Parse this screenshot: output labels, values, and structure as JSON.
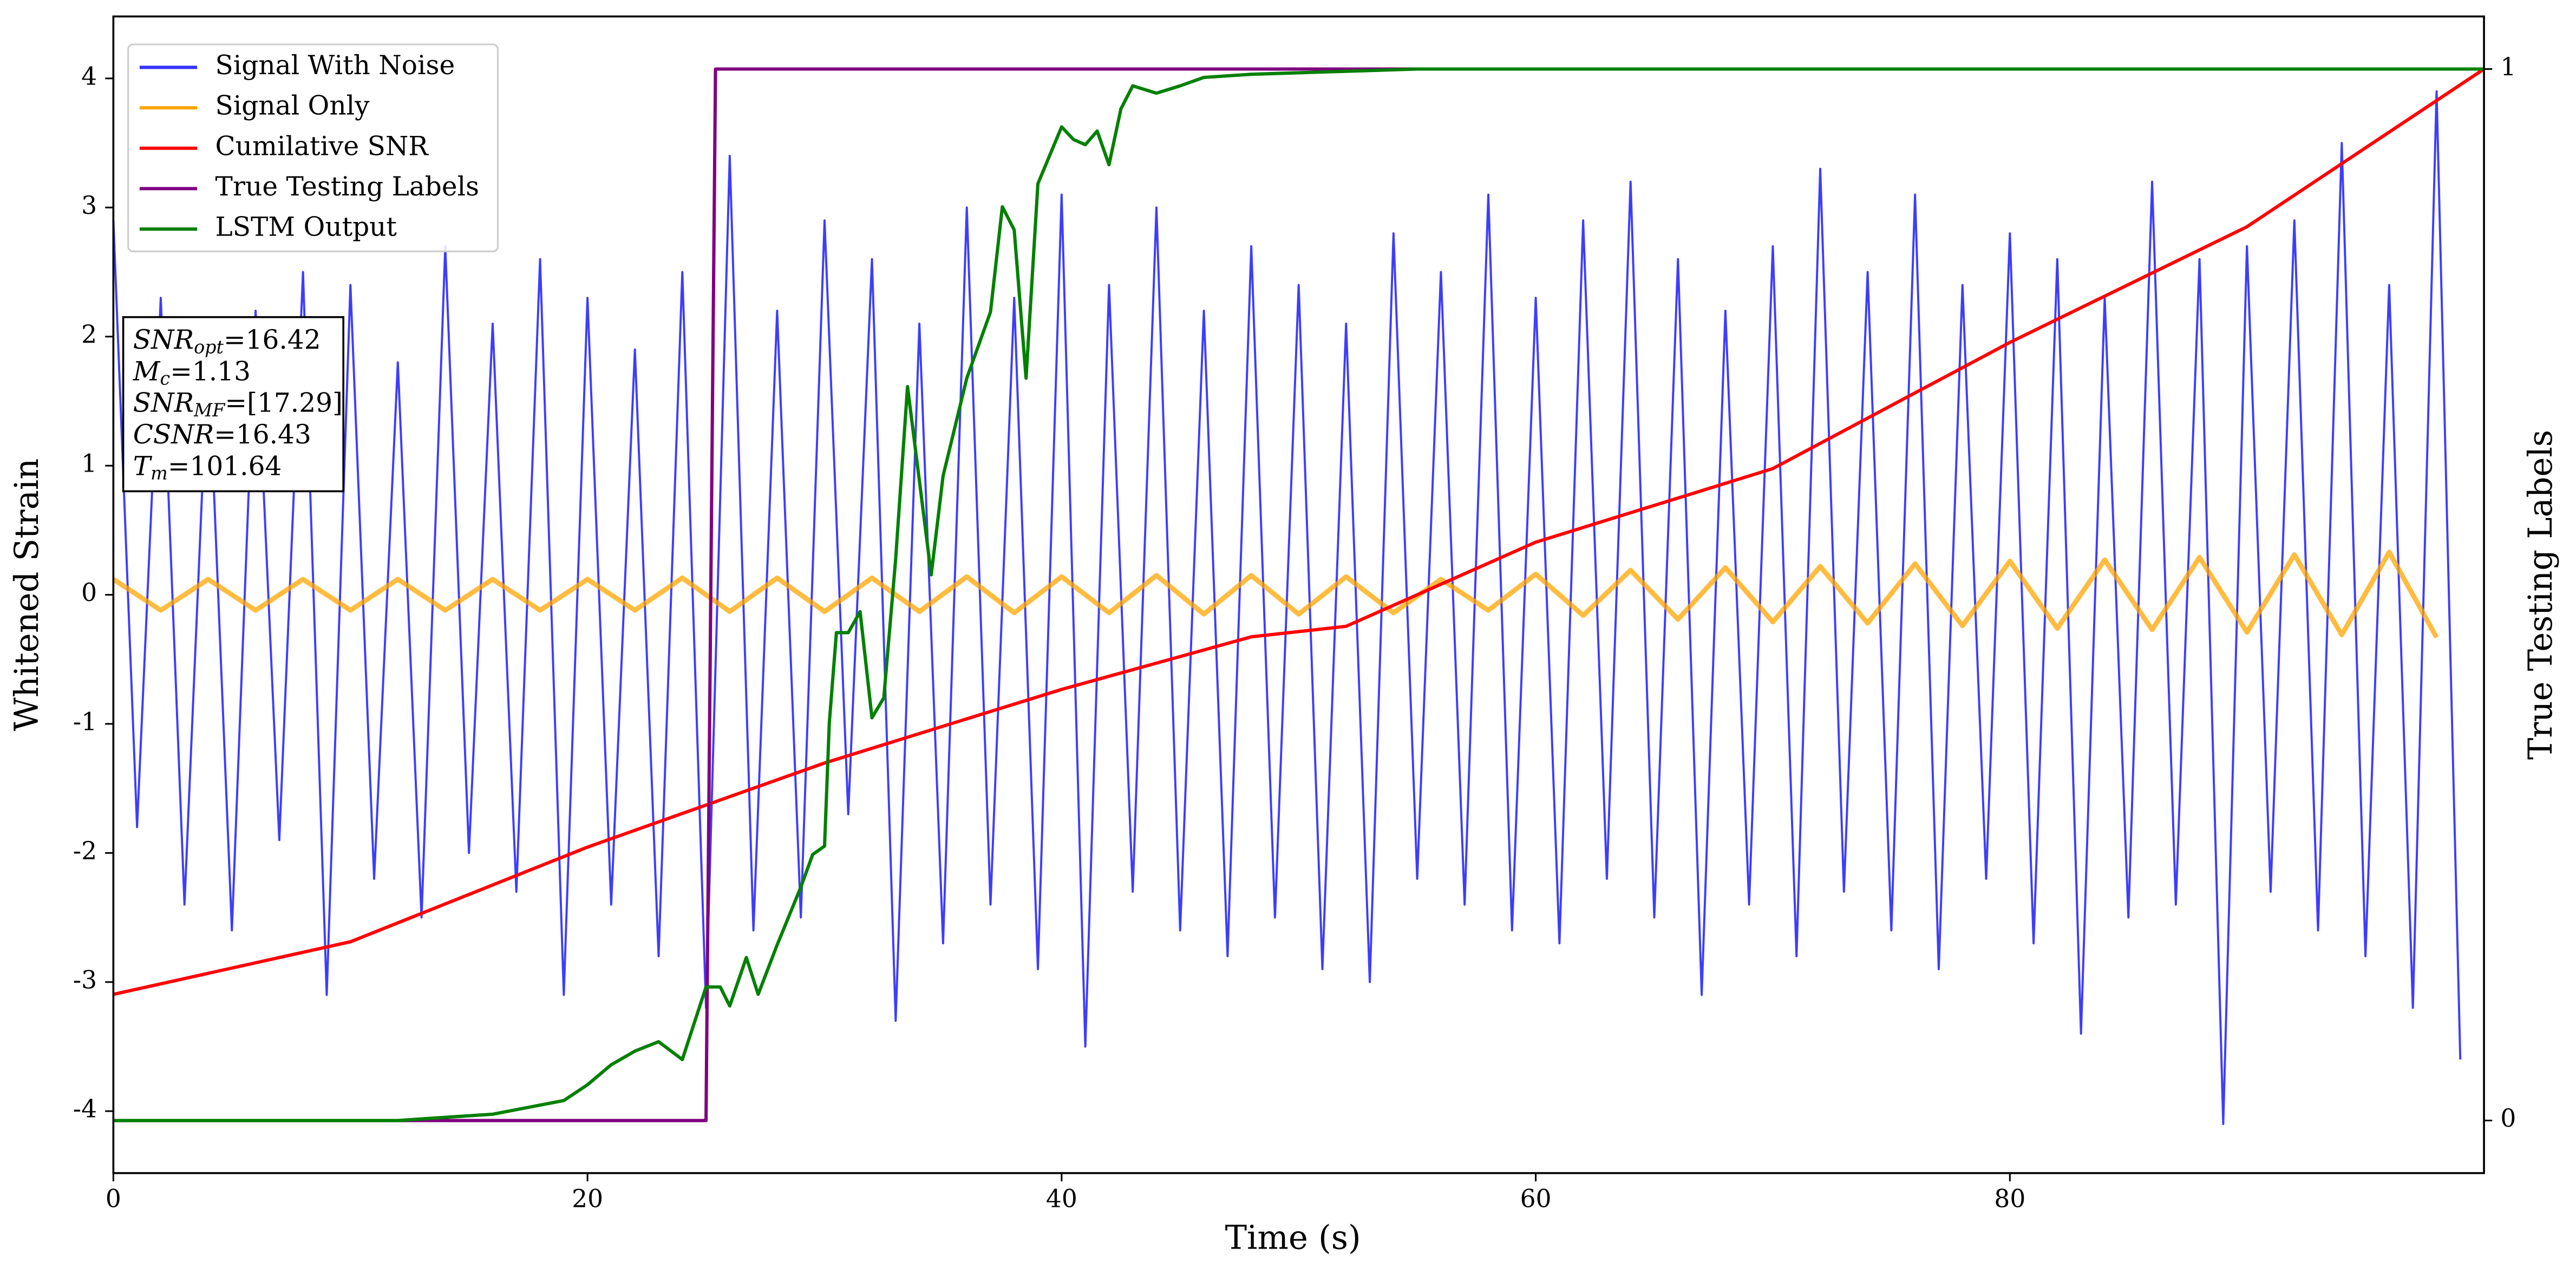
{
  "chart_data": {
    "type": "line",
    "xlabel": "Time (s)",
    "ylabel": "Whitened Strain",
    "y2label": "True Testing Labels",
    "xlim": [
      0,
      100
    ],
    "xticks": [
      0,
      20,
      40,
      60,
      80
    ],
    "ylim": [
      -4.48,
      4.48
    ],
    "yticks": [
      -4,
      -3,
      -2,
      -1,
      0,
      1,
      2,
      3,
      4
    ],
    "y2lim": [
      -0.05,
      1.05
    ],
    "y2ticks": [
      0,
      1
    ],
    "legend": "upper left",
    "series": [
      {
        "name": "Signal With Noise",
        "color": "#3333ff",
        "x": [
          0,
          1,
          2,
          3,
          4,
          5,
          6,
          7,
          8,
          9,
          10,
          11,
          12,
          13,
          14,
          15,
          16,
          17,
          18,
          19,
          20,
          21,
          22,
          23,
          24,
          25,
          26,
          27,
          28,
          29,
          30,
          31,
          32,
          33,
          34,
          35,
          36,
          37,
          38,
          39,
          40,
          41,
          42,
          43,
          44,
          45,
          46,
          47,
          48,
          49,
          50,
          51,
          52,
          53,
          54,
          55,
          56,
          57,
          58,
          59,
          60,
          61,
          62,
          63,
          64,
          65,
          66,
          67,
          68,
          69,
          70,
          71,
          72,
          73,
          74,
          75,
          76,
          77,
          78,
          79,
          80,
          81,
          82,
          83,
          84,
          85,
          86,
          87,
          88,
          89,
          90,
          91,
          92,
          93,
          94,
          95,
          96,
          97,
          98,
          99
        ],
        "values": [
          2.9,
          -1.8,
          2.3,
          -2.4,
          1.9,
          -2.6,
          2.2,
          -1.9,
          2.5,
          -3.1,
          2.4,
          -2.2,
          1.8,
          -2.5,
          2.7,
          -2.0,
          2.1,
          -2.3,
          2.6,
          -3.1,
          2.3,
          -2.4,
          1.9,
          -2.8,
          2.5,
          -3.2,
          3.4,
          -2.6,
          2.2,
          -2.5,
          2.9,
          -1.7,
          2.6,
          -3.3,
          2.1,
          -2.7,
          3.0,
          -2.4,
          2.3,
          -2.9,
          3.1,
          -3.5,
          2.4,
          -2.3,
          3.0,
          -2.6,
          2.2,
          -2.8,
          2.7,
          -2.5,
          2.4,
          -2.9,
          2.1,
          -3.0,
          2.8,
          -2.2,
          2.5,
          -2.4,
          3.1,
          -2.6,
          2.3,
          -2.7,
          2.9,
          -2.2,
          3.2,
          -2.5,
          2.6,
          -3.1,
          2.2,
          -2.4,
          2.7,
          -2.8,
          3.3,
          -2.3,
          2.5,
          -2.6,
          3.1,
          -2.9,
          2.4,
          -2.2,
          2.8,
          -2.7,
          2.6,
          -3.4,
          2.3,
          -2.5,
          3.2,
          -2.4,
          2.6,
          -4.1,
          2.7,
          -2.3,
          2.9,
          -2.6,
          3.5,
          -2.8,
          2.4,
          -3.2,
          3.9,
          -3.6
        ]
      },
      {
        "name": "Signal Only",
        "color": "#ffa500",
        "x": [
          0,
          2,
          4,
          6,
          8,
          10,
          12,
          14,
          16,
          18,
          20,
          22,
          24,
          26,
          28,
          30,
          32,
          34,
          36,
          38,
          40,
          42,
          44,
          46,
          48,
          50,
          52,
          54,
          56,
          58,
          60,
          62,
          64,
          66,
          68,
          70,
          72,
          74,
          76,
          78,
          80,
          82,
          84,
          86,
          88,
          90,
          92,
          94,
          96,
          98
        ],
        "values": [
          0.12,
          -0.12,
          0.12,
          -0.12,
          0.12,
          -0.12,
          0.12,
          -0.12,
          0.12,
          -0.12,
          0.12,
          -0.12,
          0.13,
          -0.13,
          0.13,
          -0.13,
          0.13,
          -0.13,
          0.14,
          -0.14,
          0.14,
          -0.14,
          0.15,
          -0.15,
          0.15,
          -0.15,
          0.14,
          -0.14,
          0.12,
          -0.12,
          0.16,
          -0.16,
          0.19,
          -0.19,
          0.21,
          -0.21,
          0.22,
          -0.22,
          0.24,
          -0.24,
          0.26,
          -0.26,
          0.27,
          -0.27,
          0.29,
          -0.29,
          0.31,
          -0.31,
          0.33,
          -0.33
        ]
      },
      {
        "name": "Cumilative SNR",
        "color": "#ff0000",
        "axis": "y2",
        "x": [
          0,
          10,
          20,
          25,
          30,
          40,
          48,
          52,
          60,
          70,
          80,
          90,
          100
        ],
        "values": [
          0.12,
          0.17,
          0.26,
          0.3,
          0.34,
          0.41,
          0.46,
          0.47,
          0.55,
          0.62,
          0.74,
          0.85,
          1.0
        ]
      },
      {
        "name": "True Testing Labels",
        "color": "#800080",
        "axis": "y2",
        "x": [
          0,
          25.0,
          25.4,
          100
        ],
        "values": [
          0,
          0,
          1,
          1
        ]
      },
      {
        "name": "LSTM Output",
        "color": "#008000",
        "axis": "y2",
        "x": [
          0,
          12,
          16,
          19,
          20,
          21,
          22,
          23,
          24,
          25,
          25.6,
          26,
          26.7,
          27.2,
          28,
          29,
          29.5,
          30,
          30.2,
          30.5,
          31,
          31.5,
          32,
          32.5,
          33,
          33.5,
          34.5,
          35,
          36,
          37,
          37.5,
          38,
          38.5,
          39,
          40,
          40.5,
          41,
          41.5,
          42,
          42.5,
          43,
          44,
          45,
          46,
          48,
          55,
          100
        ],
        "values": [
          0,
          0,
          0.006,
          0.019,
          0.034,
          0.053,
          0.066,
          0.075,
          0.058,
          0.127,
          0.127,
          0.109,
          0.155,
          0.12,
          0.167,
          0.222,
          0.253,
          0.261,
          0.378,
          0.464,
          0.464,
          0.484,
          0.383,
          0.402,
          0.534,
          0.698,
          0.519,
          0.613,
          0.706,
          0.769,
          0.869,
          0.847,
          0.706,
          0.891,
          0.945,
          0.933,
          0.928,
          0.941,
          0.909,
          0.962,
          0.984,
          0.977,
          0.984,
          0.992,
          0.995,
          1,
          1
        ]
      }
    ],
    "annotation": [
      {
        "text": "SNR",
        "sub": "opt",
        "value": "=16.42"
      },
      {
        "text": "M",
        "sub": "c",
        "value": "=1.13"
      },
      {
        "text": "SNR",
        "sub": "MF",
        "value": "=[17.29]"
      },
      {
        "text": "CSNR",
        "value": "=16.43"
      },
      {
        "text": "T",
        "sub": "m",
        "value": "=101.64"
      }
    ]
  }
}
